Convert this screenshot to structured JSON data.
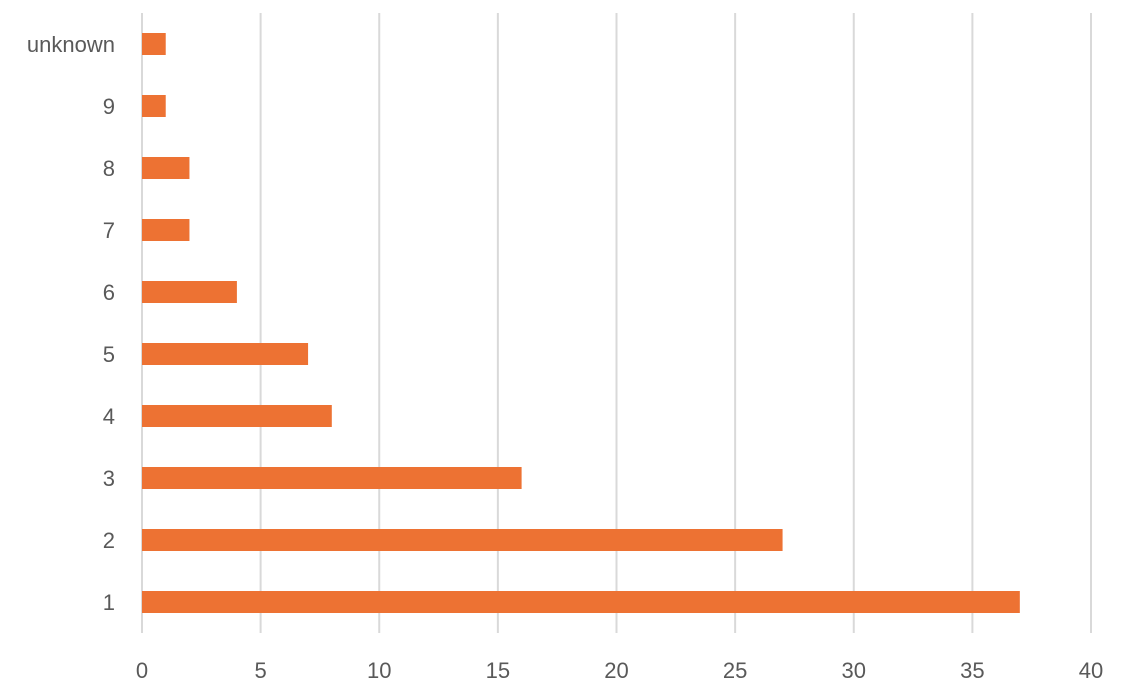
{
  "chart_data": {
    "type": "bar",
    "orientation": "horizontal",
    "categories": [
      "1",
      "2",
      "3",
      "4",
      "5",
      "6",
      "7",
      "8",
      "9",
      "unknown"
    ],
    "values": [
      37,
      27,
      16,
      8,
      7,
      4,
      2,
      2,
      1,
      1
    ],
    "xlim": [
      0,
      40
    ],
    "xticks": [
      0,
      5,
      10,
      15,
      20,
      25,
      30,
      35,
      40
    ],
    "grid": "vertical",
    "legend": "none",
    "bar_color": "#ED7233",
    "title": "",
    "xlabel": "",
    "ylabel": ""
  }
}
